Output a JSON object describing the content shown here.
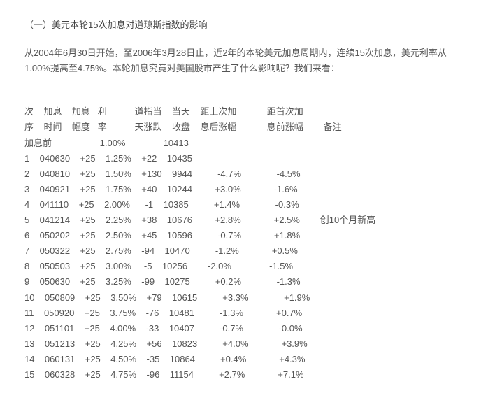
{
  "title": "（一）美元本轮15次加息对道琼斯指数的影响",
  "intro": "从2004年6月30日开始，至2006年3月28日止，近2年的本轮美元加息周期内，连续15次加息，美元利率从1.00%提高至4.75%。本轮加息究竟对美国股市产生了什么影响呢？我们来看：",
  "header1": "次    加息    加息   利           道指当    当天    距上次加            距首次加",
  "header2": "序    时间    幅度   率           天涨跌    收盘    息后涨幅            息前涨幅        备注",
  "prerow": "加息前                   1.00%               10413",
  "rows": [
    "1    040630    +25    1.25%    +22    10435",
    "2    040810    +25    1.50%    +130    9944          -4.7%              -4.5%",
    "3    040921    +25    1.75%    +40    10244         +3.0%             -1.6%",
    "4    041110    +25    2.00%      -1    10385          +1.4%              -0.3%",
    "5    041214    +25    2.25%    +38    10676         +2.8%             +2.5%        创10个月新高",
    "6    050202    +25    2.50%    +45    10596          -0.7%             +1.8%",
    "7    050322    +25    2.75%    -94    10470          -1.2%             +0.5%",
    "8    050503    +25    3.00%     -5    10256        -2.0%               -1.5%",
    "9    050630    +25    3.25%    -99    10275          +0.2%              -1.3%",
    "10    050809    +25    3.50%    +79    10615          +3.3%              +1.9%",
    "11    050920    +25    3.75%    -76    10481          -1.3%             +0.7%",
    "12    051101    +25    4.00%    -33    10407          -0.7%              -0.0%",
    "13    051213    +25    4.25%    +56    10823          +4.0%             +3.9%",
    "14    060131    +25    4.50%    -35    10864          +0.4%             +4.3%",
    "15    060328    +25    4.75%    -96    11154          +2.7%             +7.1%"
  ]
}
